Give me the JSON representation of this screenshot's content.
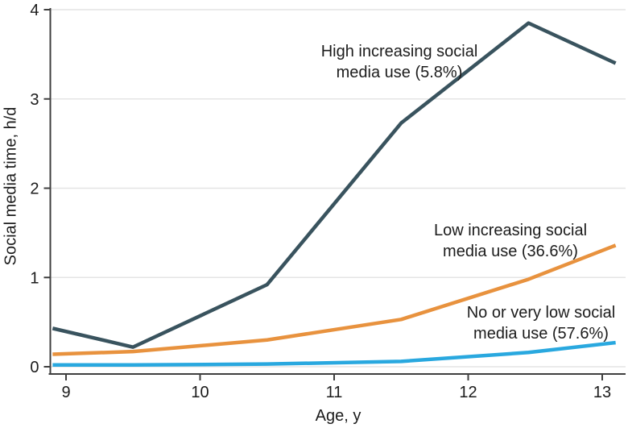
{
  "chart_data": {
    "type": "line",
    "title": "",
    "xlabel": "Age, y",
    "ylabel": "Social media time, h/d",
    "xlim": [
      8.85,
      13.17
    ],
    "ylim": [
      0,
      4
    ],
    "x_ticks": [
      9,
      10,
      11,
      12,
      13
    ],
    "y_ticks": [
      0,
      1,
      2,
      3,
      4
    ],
    "grid": "horizontal-only",
    "legend": "inline-annotations",
    "x": [
      8.9,
      9.5,
      10.5,
      11.5,
      12.45,
      13.1
    ],
    "series": [
      {
        "id": "high-increasing",
        "name": "High increasing social media use (5.8%)",
        "color": "#39535E",
        "values": [
          0.43,
          0.22,
          0.92,
          2.73,
          3.85,
          3.4
        ]
      },
      {
        "id": "low-increasing",
        "name": "Low increasing social media use (36.6%)",
        "color": "#E8923E",
        "values": [
          0.14,
          0.17,
          0.3,
          0.53,
          0.98,
          1.36
        ]
      },
      {
        "id": "no-or-very-low",
        "name": "No or very low social media use (57.6%)",
        "color": "#29A8DF",
        "values": [
          0.02,
          0.02,
          0.03,
          0.06,
          0.16,
          0.27
        ]
      }
    ],
    "annotations": [
      {
        "lines": [
          "High increasing social",
          "media use (5.8%)"
        ]
      },
      {
        "lines": [
          "Low increasing social",
          "media use (36.6%)"
        ]
      },
      {
        "lines": [
          "No or very low social",
          "media use (57.6%)"
        ]
      }
    ],
    "colors": {
      "axis": "#3F3F3F",
      "grid": "#E4E4E4",
      "text": "#1C1C1C"
    }
  }
}
